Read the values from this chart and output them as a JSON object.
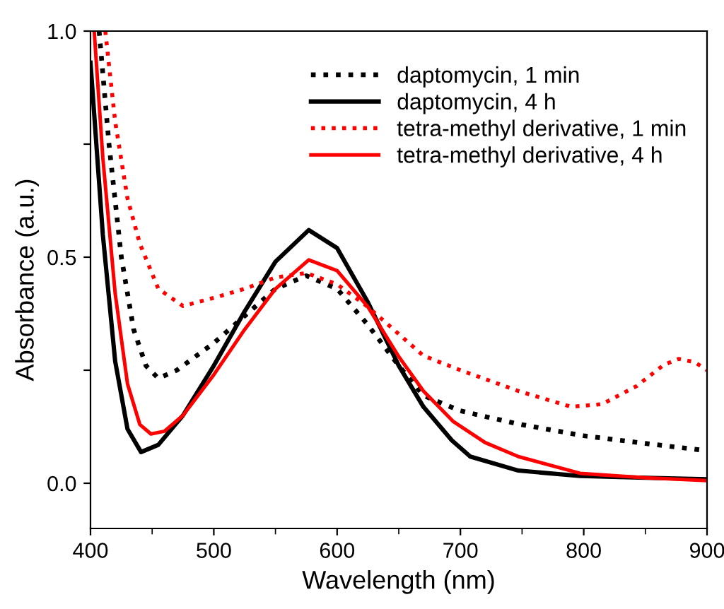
{
  "chart_data": {
    "type": "line",
    "xlabel": "Wavelength (nm)",
    "ylabel": "Absorbance (a.u.)",
    "xlim": [
      400,
      900
    ],
    "ylim": [
      -0.1,
      1.0
    ],
    "xticks": [
      400,
      500,
      600,
      700,
      800,
      900
    ],
    "yticks": [
      {
        "value": 0.0,
        "label": "0.0"
      },
      {
        "value": 0.25,
        "label": null
      },
      {
        "value": 0.5,
        "label": "0.5"
      },
      {
        "value": 0.75,
        "label": null
      },
      {
        "value": 1.0,
        "label": "1.0"
      }
    ],
    "grid": false,
    "legend": "top right",
    "marker": "none",
    "series": [
      {
        "name": "daptomycin, 1 min",
        "color": "#000000",
        "line_style": "dotted",
        "x": [
          407,
          415,
          425,
          435,
          445,
          455,
          470,
          500,
          525,
          550,
          575,
          600,
          625,
          650,
          670,
          700,
          747,
          800,
          850,
          900
        ],
        "values": [
          1.0,
          0.75,
          0.5,
          0.34,
          0.26,
          0.232,
          0.25,
          0.31,
          0.37,
          0.43,
          0.459,
          0.43,
          0.35,
          0.26,
          0.194,
          0.16,
          0.131,
          0.105,
          0.088,
          0.072
        ]
      },
      {
        "name": "daptomycin, 4 h",
        "color": "#000000",
        "line_style": "solid",
        "x": [
          400,
          410,
          420,
          430,
          441,
          455,
          475,
          500,
          525,
          550,
          577,
          600,
          625,
          650,
          670,
          693,
          708,
          747,
          797,
          850,
          900
        ],
        "values": [
          0.93,
          0.55,
          0.27,
          0.12,
          0.069,
          0.085,
          0.15,
          0.26,
          0.38,
          0.49,
          0.56,
          0.52,
          0.4,
          0.26,
          0.169,
          0.095,
          0.059,
          0.028,
          0.016,
          0.012,
          0.009
        ]
      },
      {
        "name": "tetra-methyl derivative, 1 min",
        "color": "#ff0000",
        "line_style": "dotted",
        "x": [
          412,
          420,
          430,
          440,
          455,
          475,
          500,
          525,
          550,
          575,
          600,
          625,
          650,
          670,
          700,
          747,
          790,
          815,
          843,
          865,
          877,
          890,
          900
        ],
        "values": [
          1.0,
          0.8,
          0.63,
          0.53,
          0.43,
          0.392,
          0.41,
          0.43,
          0.455,
          0.465,
          0.44,
          0.39,
          0.33,
          0.282,
          0.25,
          0.204,
          0.169,
          0.175,
          0.215,
          0.262,
          0.275,
          0.268,
          0.25
        ]
      },
      {
        "name": "tetra-methyl derivative, 4 h",
        "color": "#ff0000",
        "line_style": "solid",
        "x": [
          403,
          410,
          420,
          430,
          440,
          449,
          460,
          475,
          500,
          525,
          550,
          577,
          600,
          625,
          650,
          670,
          694,
          720,
          747,
          797,
          850,
          900
        ],
        "values": [
          1.0,
          0.72,
          0.42,
          0.22,
          0.13,
          0.109,
          0.115,
          0.15,
          0.24,
          0.34,
          0.43,
          0.494,
          0.47,
          0.39,
          0.28,
          0.204,
          0.137,
          0.09,
          0.059,
          0.022,
          0.012,
          0.006
        ]
      }
    ]
  }
}
